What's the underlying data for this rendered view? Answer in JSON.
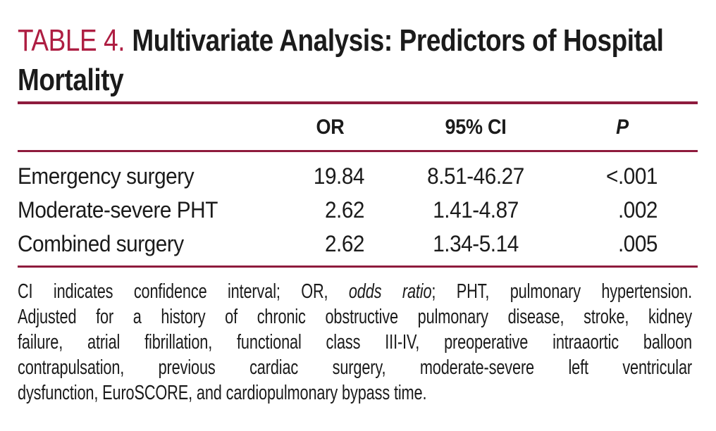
{
  "colors": {
    "accent": "#ae1e42",
    "rule": "#8e1b3d",
    "text": "#1b1b1b",
    "background": "#ffffff"
  },
  "title": {
    "label": "TABLE 4.",
    "line1": "Multivariate Analysis: Predictors of Hospital",
    "line2": "Mortality"
  },
  "table": {
    "columns": [
      {
        "key": "predictor",
        "label": ""
      },
      {
        "key": "or",
        "label": "OR"
      },
      {
        "key": "ci",
        "label": "95% CI"
      },
      {
        "key": "p",
        "label": "P"
      }
    ],
    "rows": [
      {
        "predictor": "Emergency surgery",
        "or": "19.84",
        "ci": "8.51-46.27",
        "p": "<.001"
      },
      {
        "predictor": "Moderate-severe PHT",
        "or": "2.62",
        "ci": "1.41-4.87",
        "p": ".002"
      },
      {
        "predictor": "Combined surgery",
        "or": "2.62",
        "ci": "1.34-5.14",
        "p": ".005"
      }
    ]
  },
  "footnote": {
    "line1_prefix": "CI indicates confidence interval; OR, ",
    "line1_italic": "odds ratio",
    "line1_suffix": "; PHT, pulmonary hypertension.",
    "lines": [
      "Adjusted for a history of chronic obstructive pulmonary disease, stroke, kidney",
      "failure, atrial fibrillation, functional class III-IV, preoperative intraaortic balloon",
      "contrapulsation, previous cardiac surgery, moderate-severe left ventricular",
      "dysfunction, EuroSCORE, and cardiopulmonary bypass time."
    ]
  }
}
